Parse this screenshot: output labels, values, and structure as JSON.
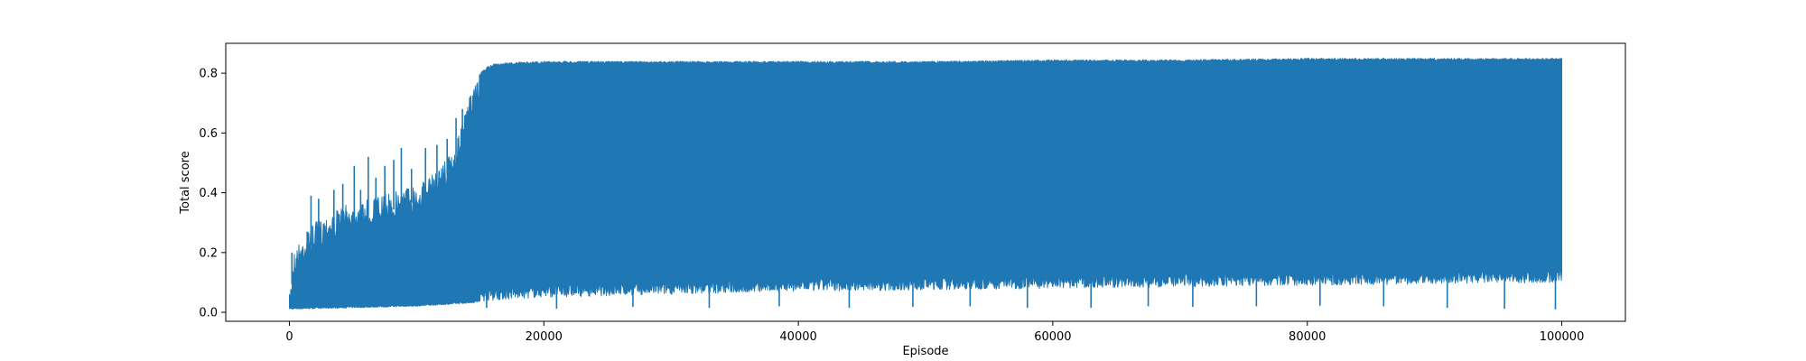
{
  "chart_data": {
    "type": "line",
    "title": "",
    "xlabel": "Episode",
    "ylabel": "Total score",
    "xlim": [
      -5000,
      105000
    ],
    "ylim": [
      -0.03,
      0.9
    ],
    "xticks": [
      0,
      20000,
      40000,
      60000,
      80000,
      100000
    ],
    "xtick_labels": [
      "0",
      "20000",
      "40000",
      "60000",
      "80000",
      "100000"
    ],
    "yticks": [
      0.0,
      0.2,
      0.4,
      0.6,
      0.8
    ],
    "ytick_labels": [
      "0.0",
      "0.2",
      "0.4",
      "0.6",
      "0.8"
    ],
    "grid": false,
    "legend": "none",
    "series": [
      {
        "color": "#1f77b4",
        "x_range": [
          0,
          100000
        ],
        "upper_envelope": {
          "x": [
            0,
            300,
            1000,
            2000,
            3000,
            4000,
            5000,
            6000,
            7000,
            8000,
            9000,
            10000,
            11000,
            12000,
            13000,
            13500,
            14000,
            14500,
            15000,
            15500,
            16000,
            17000,
            20000,
            30000,
            40000,
            50000,
            60000,
            70000,
            80000,
            90000,
            100000
          ],
          "y": [
            0.06,
            0.2,
            0.25,
            0.3,
            0.33,
            0.35,
            0.37,
            0.38,
            0.39,
            0.4,
            0.42,
            0.43,
            0.45,
            0.5,
            0.55,
            0.62,
            0.7,
            0.76,
            0.8,
            0.82,
            0.83,
            0.835,
            0.84,
            0.84,
            0.84,
            0.84,
            0.845,
            0.845,
            0.85,
            0.85,
            0.85
          ]
        },
        "upper_spikes": {
          "x": [
            200,
            1400,
            1700,
            2300,
            3500,
            4200,
            5100,
            5600,
            6200,
            6800,
            7500,
            8200,
            8800,
            9600,
            10700,
            11600,
            12400,
            13100,
            13600
          ],
          "y": [
            0.2,
            0.27,
            0.39,
            0.38,
            0.41,
            0.43,
            0.49,
            0.41,
            0.52,
            0.45,
            0.49,
            0.51,
            0.55,
            0.48,
            0.55,
            0.56,
            0.58,
            0.65,
            0.68
          ]
        },
        "lower_envelope": {
          "x": [
            0,
            2000,
            5000,
            10000,
            14000,
            16000,
            20000,
            30000,
            40000,
            50000,
            60000,
            70000,
            80000,
            90000,
            100000
          ],
          "y": [
            0.01,
            0.012,
            0.015,
            0.02,
            0.03,
            0.04,
            0.05,
            0.06,
            0.07,
            0.075,
            0.08,
            0.085,
            0.09,
            0.095,
            0.1
          ]
        },
        "lower_dips": {
          "x": [
            15500,
            21000,
            27000,
            33000,
            38500,
            44000,
            49000,
            53500,
            58000,
            63000,
            67500,
            71000,
            76000,
            81000,
            86000,
            91000,
            95500,
            99500
          ],
          "y": [
            0.015,
            0.012,
            0.018,
            0.015,
            0.02,
            0.015,
            0.018,
            0.02,
            0.015,
            0.015,
            0.02,
            0.018,
            0.02,
            0.022,
            0.02,
            0.015,
            0.012,
            0.01
          ]
        }
      }
    ]
  }
}
